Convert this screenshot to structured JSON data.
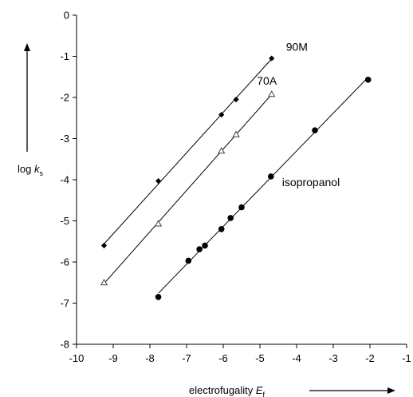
{
  "chart_data": {
    "type": "scatter",
    "xlim": [
      -10,
      -1
    ],
    "ylim": [
      -8,
      0
    ],
    "x_ticks": [
      "-10",
      "-9",
      "-8",
      "-7",
      "-6",
      "-5",
      "-4",
      "-3",
      "-2",
      "-1"
    ],
    "y_ticks": [
      "0",
      "-1",
      "-2",
      "-3",
      "-4",
      "-5",
      "-6",
      "-7",
      "-8"
    ],
    "xlabel": {
      "text": "electrofugality ",
      "var": "E",
      "sub": "f"
    },
    "ylabel": {
      "text": "log ",
      "var": "k",
      "sub": "s"
    },
    "grid": false,
    "series": [
      {
        "name": "90M",
        "marker": "diamond",
        "x": [
          -9.25,
          -7.77,
          -6.05,
          -5.65,
          -4.68
        ],
        "y": [
          -5.6,
          -4.03,
          -2.42,
          -2.05,
          -1.05
        ]
      },
      {
        "name": "70A",
        "marker": "triangle-open",
        "x": [
          -9.25,
          -7.77,
          -6.05,
          -5.65,
          -4.68
        ],
        "y": [
          -6.5,
          -5.07,
          -3.3,
          -2.9,
          -1.92
        ]
      },
      {
        "name": "isopropanol",
        "marker": "circle",
        "x": [
          -7.77,
          -6.95,
          -6.65,
          -6.5,
          -6.05,
          -5.8,
          -5.5,
          -4.7,
          -3.5,
          -2.05
        ],
        "y": [
          -6.85,
          -5.97,
          -5.69,
          -5.6,
          -5.2,
          -4.93,
          -4.67,
          -3.92,
          -2.8,
          -1.57
        ]
      }
    ]
  }
}
